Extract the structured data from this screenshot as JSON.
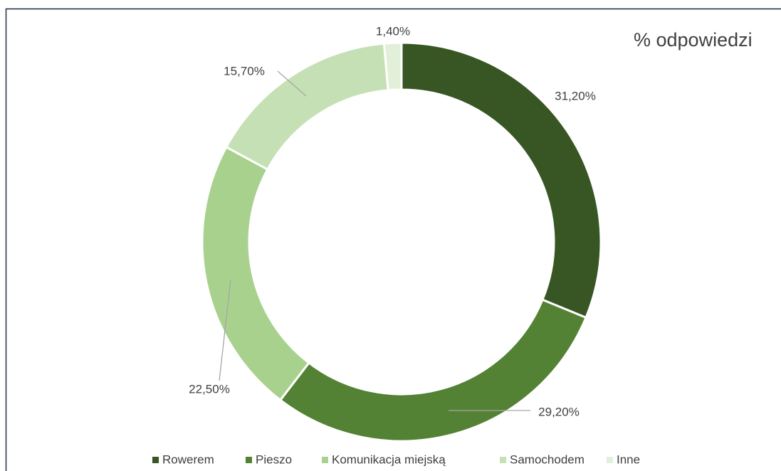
{
  "chart_data": {
    "type": "donut",
    "title": "% odpowiedzi",
    "categories": [
      "Rowerem",
      "Pieszo",
      "Komunikacja miejską",
      "Samochodem",
      "Inne"
    ],
    "values": [
      31.2,
      29.2,
      22.5,
      15.7,
      1.4
    ],
    "value_labels": [
      "31,20%",
      "29,20%",
      "22,50%",
      "15,70%",
      "1,40%"
    ],
    "colors": [
      "#375623",
      "#548235",
      "#a9d18e",
      "#c5e0b4",
      "#e2f0d9"
    ],
    "legend": "bottom"
  }
}
